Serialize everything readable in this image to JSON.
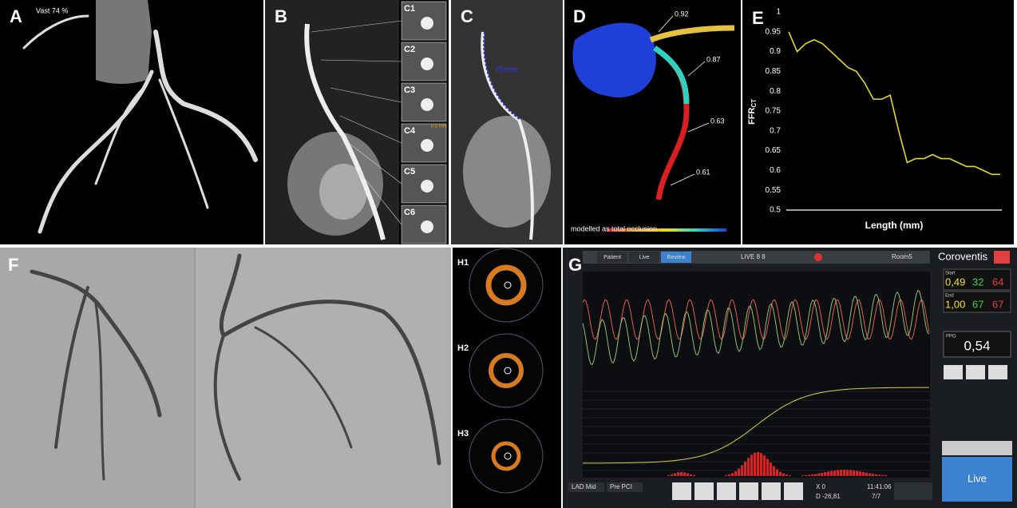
{
  "panels": {
    "a": {
      "label": "A",
      "caption": "Vast 74 %"
    },
    "b": {
      "label": "B",
      "sections": [
        "C1",
        "C2",
        "C3",
        "C4",
        "C5",
        "C6"
      ],
      "measure": "0.0 mm"
    },
    "c": {
      "label": "C",
      "length": "75mm"
    },
    "d": {
      "label": "D",
      "values": [
        "0.92",
        "0.87",
        "0.63",
        "0.61"
      ],
      "note": "modelled as total occlusion"
    },
    "e": {
      "label": "E",
      "xlabel": "Length (mm)",
      "ylabel": {
        "main": "FFR",
        "sub": "CT"
      },
      "ylim": [
        0.5,
        1
      ],
      "yticks": [
        1,
        0.95,
        0.9,
        0.85,
        0.8,
        0.75,
        0.7,
        0.65,
        0.6,
        0.55,
        0.5
      ],
      "values": [
        0.95,
        0.9,
        0.92,
        0.93,
        0.92,
        0.9,
        0.88,
        0.86,
        0.85,
        0.82,
        0.78,
        0.78,
        0.79,
        0.7,
        0.62,
        0.63,
        0.63,
        0.64,
        0.63,
        0.63,
        0.62,
        0.61,
        0.61,
        0.6,
        0.59,
        0.59
      ],
      "color": "#e6d81e"
    },
    "f": {
      "label": "F"
    },
    "h": {
      "labels": [
        "H1",
        "H2",
        "H3"
      ]
    },
    "g": {
      "label": "G",
      "tabs": [
        "Patient",
        "Live",
        "Review"
      ],
      "patient": "LIVE 8 8",
      "room": "Room5",
      "brand": "Coroventis",
      "start": {
        "label": "Start",
        "v1": "0,49",
        "v2": "32",
        "v3": "64"
      },
      "end": {
        "label": "End",
        "v1": "1,00",
        "v2": "67",
        "v3": "67"
      },
      "ppg": {
        "label": "PPG",
        "value": "0,54"
      },
      "live": "Live",
      "vessel": "LAD Mid",
      "phase": "Pre PCI",
      "x": "X 0",
      "d": "D -26,81",
      "time": "11:41:06",
      "count": "7/7"
    }
  }
}
